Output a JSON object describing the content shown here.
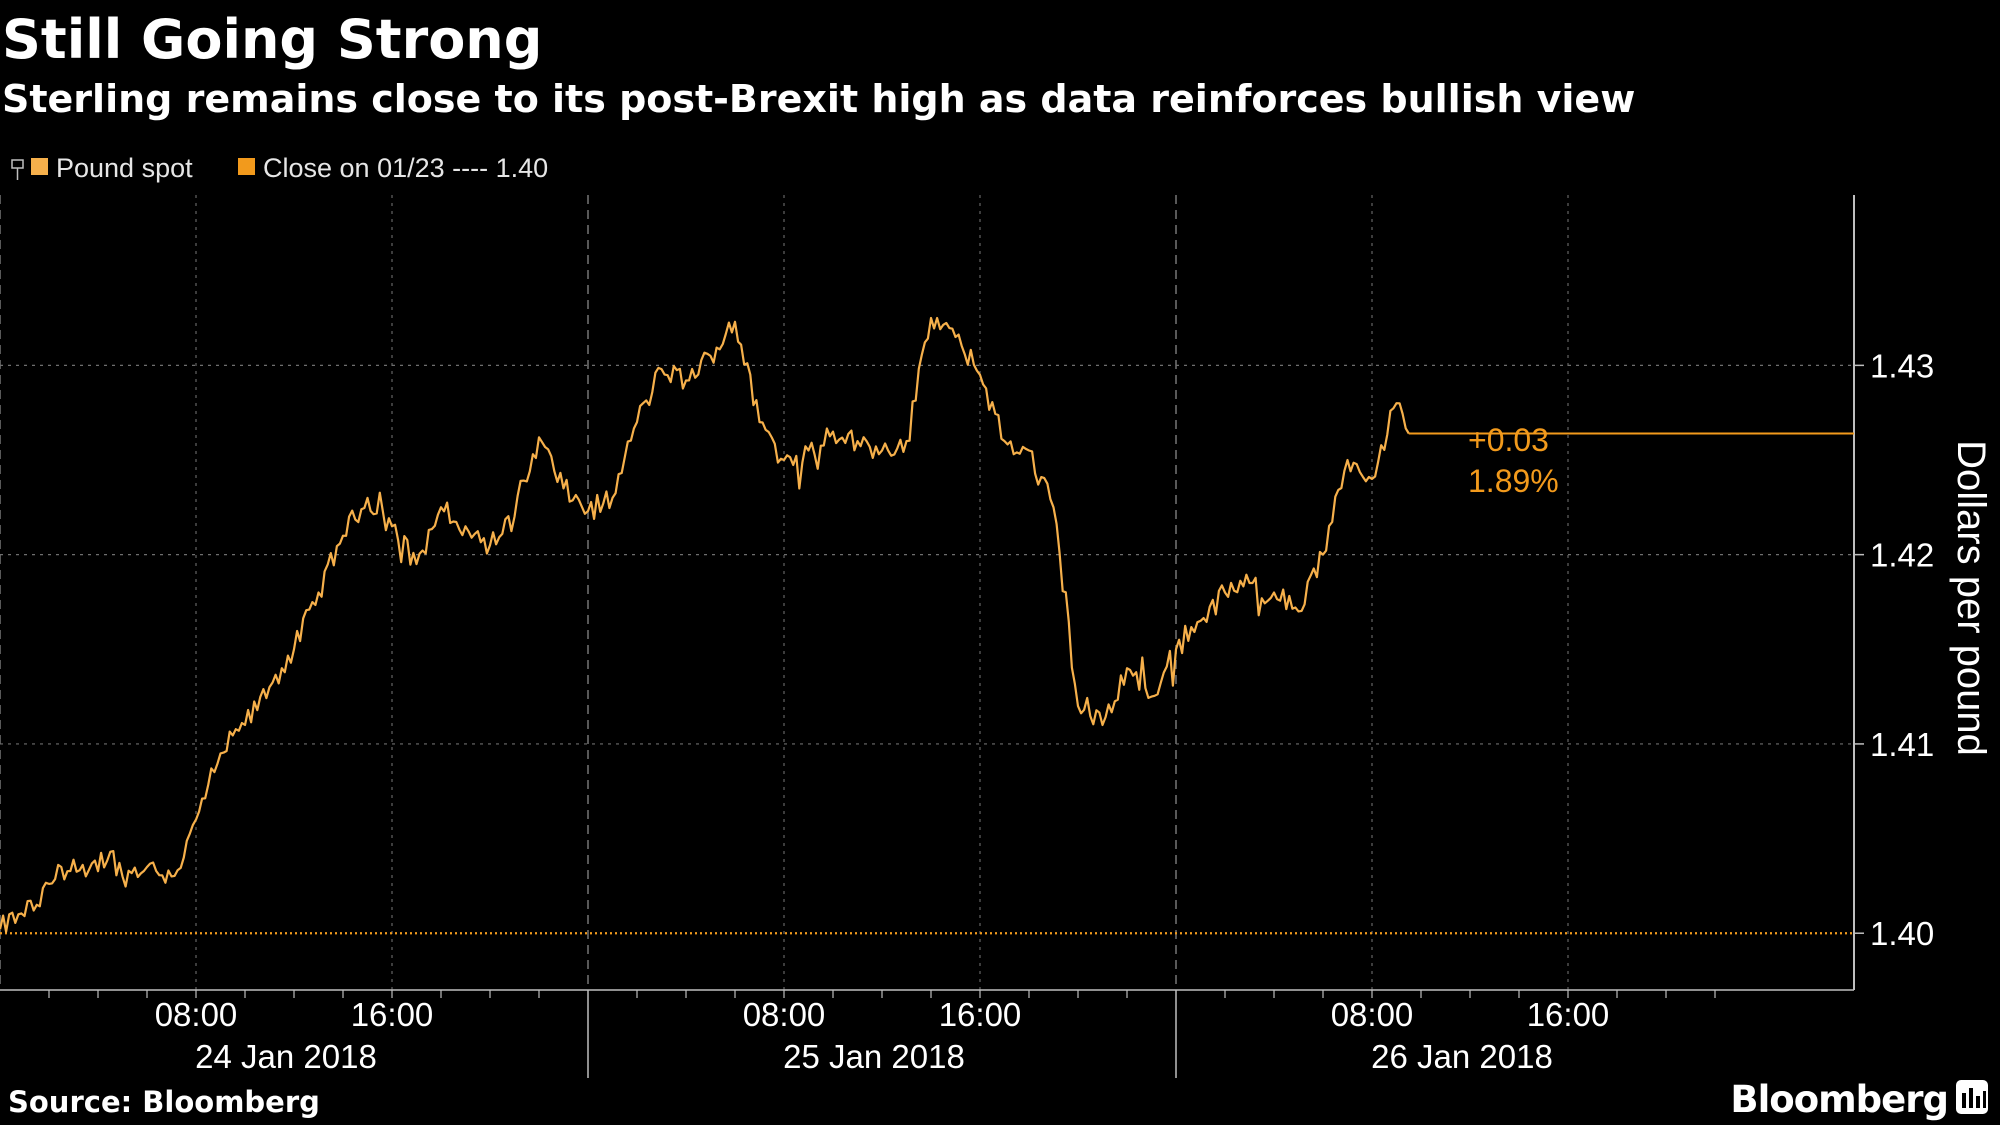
{
  "header": {
    "title": "Still Going Strong",
    "subtitle": "Sterling remains close to its post-Brexit high as data reinforces bullish view"
  },
  "legend": {
    "series_label": "Pound spot",
    "reference_label": "Close on 01/23 ---- 1.40"
  },
  "footer": {
    "source": "Source: Bloomberg",
    "brand": "Bloomberg"
  },
  "annotation": {
    "change": "+0.03",
    "percent": "1.89%"
  },
  "colors": {
    "background": "#000000",
    "series": "#f6b04b",
    "reference": "#f29a1c",
    "grid": "#6e6e6e",
    "text": "#ffffff"
  },
  "chart_data": {
    "type": "line",
    "title": "Still Going Strong",
    "subtitle": "Sterling remains close to its post-Brexit high as data reinforces bullish view",
    "xlabel": "",
    "ylabel": "Dollars per pound",
    "ylim": [
      1.397,
      1.439
    ],
    "y_ticks": [
      "1.40",
      "1.41",
      "1.42",
      "1.43"
    ],
    "x_ticks": [
      "08:00",
      "16:00",
      "08:00",
      "16:00",
      "08:00",
      "16:00"
    ],
    "x_dates": [
      "24 Jan 2018",
      "25 Jan 2018",
      "26 Jan 2018"
    ],
    "grid": true,
    "legend_position": "top-left",
    "reference_line": {
      "name": "Close on 01/23",
      "value": 1.4
    },
    "last_value": 1.4264,
    "series": [
      {
        "name": "Pound spot",
        "x": [
          "2018-01-24 00:00",
          "2018-01-24 00:45",
          "2018-01-24 01:30",
          "2018-01-24 02:30",
          "2018-01-24 03:30",
          "2018-01-24 04:30",
          "2018-01-24 05:00",
          "2018-01-24 06:00",
          "2018-01-24 07:00",
          "2018-01-24 07:30",
          "2018-01-24 08:00",
          "2018-01-24 09:00",
          "2018-01-24 10:00",
          "2018-01-24 11:00",
          "2018-01-24 12:00",
          "2018-01-24 13:00",
          "2018-01-24 14:00",
          "2018-01-24 15:00",
          "2018-01-24 16:00",
          "2018-01-24 17:00",
          "2018-01-24 18:00",
          "2018-01-24 19:00",
          "2018-01-24 20:00",
          "2018-01-24 21:00",
          "2018-01-24 22:00",
          "2018-01-24 23:00",
          "2018-01-25 00:00",
          "2018-01-25 01:00",
          "2018-01-25 02:00",
          "2018-01-25 03:00",
          "2018-01-25 04:00",
          "2018-01-25 05:00",
          "2018-01-25 06:00",
          "2018-01-25 07:00",
          "2018-01-25 08:00",
          "2018-01-25 09:00",
          "2018-01-25 10:00",
          "2018-01-25 11:00",
          "2018-01-25 12:00",
          "2018-01-25 13:00",
          "2018-01-25 14:00",
          "2018-01-25 15:00",
          "2018-01-25 16:00",
          "2018-01-25 17:00",
          "2018-01-25 18:00",
          "2018-01-25 19:00",
          "2018-01-25 20:00",
          "2018-01-25 21:00",
          "2018-01-25 22:00",
          "2018-01-25 23:00",
          "2018-01-26 00:00",
          "2018-01-26 01:00",
          "2018-01-26 02:00",
          "2018-01-26 03:00",
          "2018-01-26 04:00",
          "2018-01-26 05:00",
          "2018-01-26 06:00",
          "2018-01-26 07:00",
          "2018-01-26 08:00",
          "2018-01-26 09:00",
          "2018-01-26 09:30"
        ],
        "values": [
          1.4002,
          1.401,
          1.4015,
          1.4035,
          1.403,
          1.4043,
          1.403,
          1.4035,
          1.403,
          1.404,
          1.406,
          1.4095,
          1.411,
          1.413,
          1.415,
          1.418,
          1.421,
          1.423,
          1.4215,
          1.4195,
          1.4225,
          1.4215,
          1.4205,
          1.422,
          1.4262,
          1.4235,
          1.4223,
          1.423,
          1.427,
          1.4298,
          1.4292,
          1.4305,
          1.4323,
          1.427,
          1.425,
          1.4255,
          1.4265,
          1.426,
          1.4255,
          1.426,
          1.4325,
          1.4315,
          1.4295,
          1.426,
          1.4255,
          1.4225,
          1.412,
          1.411,
          1.414,
          1.4125,
          1.415,
          1.4165,
          1.418,
          1.4185,
          1.418,
          1.417,
          1.42,
          1.425,
          1.424,
          1.428,
          1.4264
        ]
      }
    ]
  }
}
